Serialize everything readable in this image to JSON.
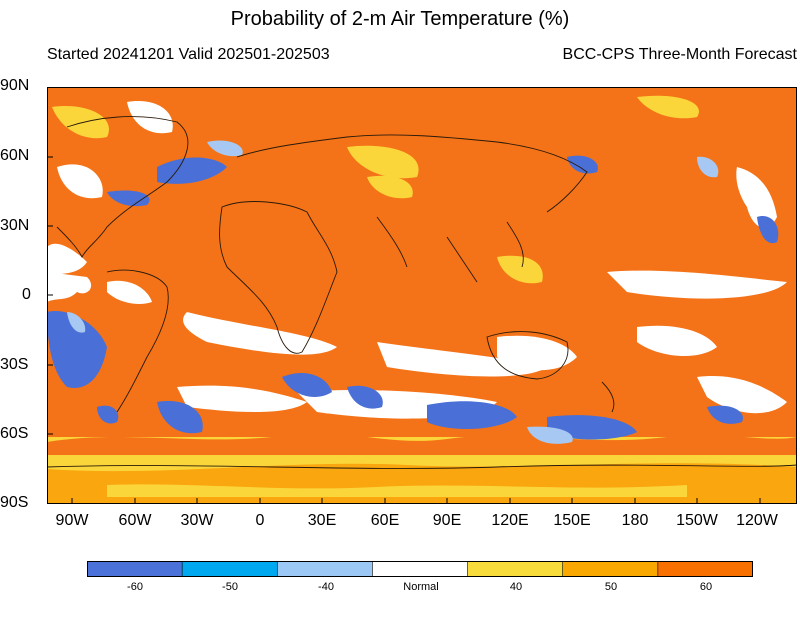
{
  "title": "Probability of 2-m Air Temperature (%)",
  "subtitle_left": "Started 20241201  Valid 202501-202503",
  "subtitle_right": "BCC-CPS Three-Month Forecast",
  "lat_labels": [
    "90N",
    "60N",
    "30N",
    "0",
    "30S",
    "60S",
    "90S"
  ],
  "lon_labels": [
    "90W",
    "60W",
    "30W",
    "0",
    "30E",
    "60E",
    "90E",
    "120E",
    "150E",
    "180",
    "150W",
    "120W"
  ],
  "colorbar": {
    "labels": [
      "-60",
      "-50",
      "-40",
      "Normal",
      "40",
      "50",
      "60"
    ],
    "colors": [
      "#4a72d8",
      "#00a8f0",
      "#9cc8f6",
      "#ffffff",
      "#f8dc3c",
      "#f8a800",
      "#f87000"
    ]
  },
  "map_colors": {
    "warm60": "#f47318",
    "warm50": "#f9a60f",
    "warm40": "#fbd63a",
    "normal": "#ffffff",
    "cold40": "#a6c8f2",
    "cold60": "#4a6fd6"
  }
}
